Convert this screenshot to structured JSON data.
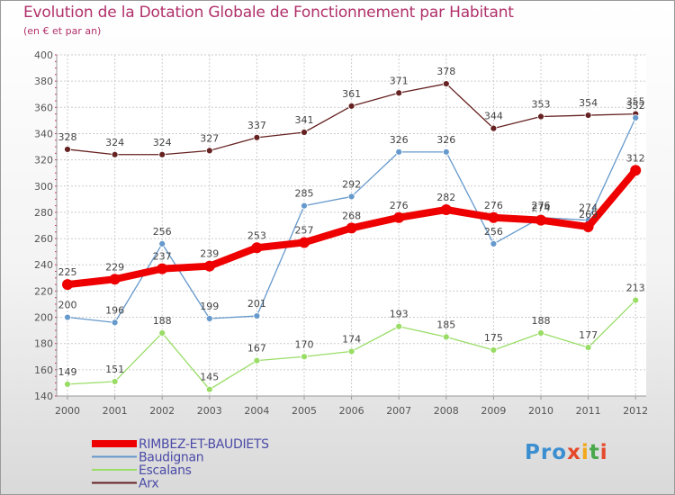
{
  "title": "Evolution de la Dotation Globale de Fonctionnement par Habitant",
  "subtitle": "(en € et par an)",
  "logo": {
    "p1": "Pro",
    "p2": "x",
    "p3": "i",
    "p4": "t",
    "p5": "i"
  },
  "chart_data": {
    "type": "line",
    "x": [
      "2000",
      "2001",
      "2002",
      "2003",
      "2004",
      "2005",
      "2006",
      "2007",
      "2008",
      "2009",
      "2010",
      "2011",
      "2012"
    ],
    "ylim": [
      140,
      400
    ],
    "yticks": [
      140,
      160,
      180,
      200,
      220,
      240,
      260,
      280,
      300,
      320,
      340,
      360,
      380,
      400
    ],
    "grid": true,
    "legend_position": "bottom-left",
    "series": [
      {
        "name": "RIMBEZ-ET-BAUDIETS",
        "color": "#ee0000",
        "values": [
          225,
          229,
          237,
          239,
          253,
          257,
          268,
          276,
          282,
          276,
          274,
          269,
          312
        ]
      },
      {
        "name": "Baudignan",
        "color": "#6699cc",
        "values": [
          200,
          196,
          256,
          199,
          201,
          285,
          292,
          326,
          326,
          256,
          276,
          274,
          352
        ]
      },
      {
        "name": "Escalans",
        "color": "#99dd66",
        "values": [
          149,
          151,
          188,
          145,
          167,
          170,
          174,
          193,
          185,
          175,
          188,
          177,
          213
        ]
      },
      {
        "name": "Arx",
        "color": "#662222",
        "values": [
          328,
          324,
          324,
          327,
          337,
          341,
          361,
          371,
          378,
          344,
          353,
          354,
          355
        ]
      }
    ]
  }
}
